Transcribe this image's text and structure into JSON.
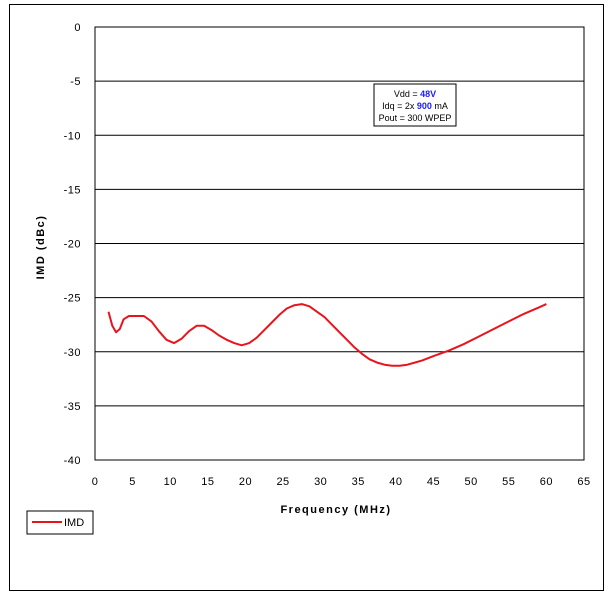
{
  "chart_data": {
    "type": "line",
    "title": "",
    "xlabel": "Frequency (MHz)",
    "ylabel": "IMD (dBc)",
    "xlim": [
      0,
      65
    ],
    "ylim": [
      -40,
      0
    ],
    "x_ticks": [
      "0",
      "5",
      "10",
      "15",
      "20",
      "25",
      "30",
      "35",
      "40",
      "45",
      "50",
      "55",
      "60",
      "65"
    ],
    "y_ticks": [
      "0",
      "-5",
      "-10",
      "-15",
      "-20",
      "-25",
      "-30",
      "-35",
      "-40"
    ],
    "grid": "horizontal",
    "legend_position": "bottom-left",
    "annotation": {
      "line1_pre": "Vdd = ",
      "line1_val": "48V",
      "line2_pre": "Idq = 2x ",
      "line2_val": "900",
      "line2_post": " mA",
      "line3": "Pout = 300 WPEP",
      "highlight_color": "#1a1aff"
    },
    "series": [
      {
        "name": "IMD",
        "color": "#e8141c",
        "points": [
          [
            1.8,
            -26.3
          ],
          [
            2.3,
            -27.6
          ],
          [
            2.8,
            -28.2
          ],
          [
            3.3,
            -27.9
          ],
          [
            3.8,
            -27.0
          ],
          [
            4.5,
            -26.7
          ],
          [
            5.5,
            -26.7
          ],
          [
            6.5,
            -26.7
          ],
          [
            7.5,
            -27.2
          ],
          [
            8.5,
            -28.1
          ],
          [
            9.5,
            -28.9
          ],
          [
            10.5,
            -29.2
          ],
          [
            11.5,
            -28.8
          ],
          [
            12.5,
            -28.1
          ],
          [
            13.5,
            -27.6
          ],
          [
            14.5,
            -27.6
          ],
          [
            15.5,
            -28.0
          ],
          [
            16.5,
            -28.5
          ],
          [
            17.5,
            -28.9
          ],
          [
            18.5,
            -29.2
          ],
          [
            19.5,
            -29.4
          ],
          [
            20.5,
            -29.2
          ],
          [
            21.5,
            -28.7
          ],
          [
            22.5,
            -28.0
          ],
          [
            23.5,
            -27.3
          ],
          [
            24.5,
            -26.6
          ],
          [
            25.5,
            -26.0
          ],
          [
            26.5,
            -25.7
          ],
          [
            27.5,
            -25.6
          ],
          [
            28.5,
            -25.8
          ],
          [
            29.5,
            -26.3
          ],
          [
            30.5,
            -26.8
          ],
          [
            31.5,
            -27.5
          ],
          [
            32.5,
            -28.2
          ],
          [
            33.5,
            -28.9
          ],
          [
            34.5,
            -29.6
          ],
          [
            35.5,
            -30.2
          ],
          [
            36.5,
            -30.7
          ],
          [
            37.5,
            -31.0
          ],
          [
            38.5,
            -31.2
          ],
          [
            39.5,
            -31.3
          ],
          [
            40.5,
            -31.3
          ],
          [
            41.5,
            -31.2
          ],
          [
            42.5,
            -31.0
          ],
          [
            43.5,
            -30.8
          ],
          [
            45,
            -30.4
          ],
          [
            47,
            -29.9
          ],
          [
            49,
            -29.3
          ],
          [
            51,
            -28.6
          ],
          [
            53,
            -27.9
          ],
          [
            55,
            -27.2
          ],
          [
            57,
            -26.5
          ],
          [
            59,
            -25.9
          ],
          [
            60,
            -25.6
          ]
        ]
      }
    ]
  }
}
